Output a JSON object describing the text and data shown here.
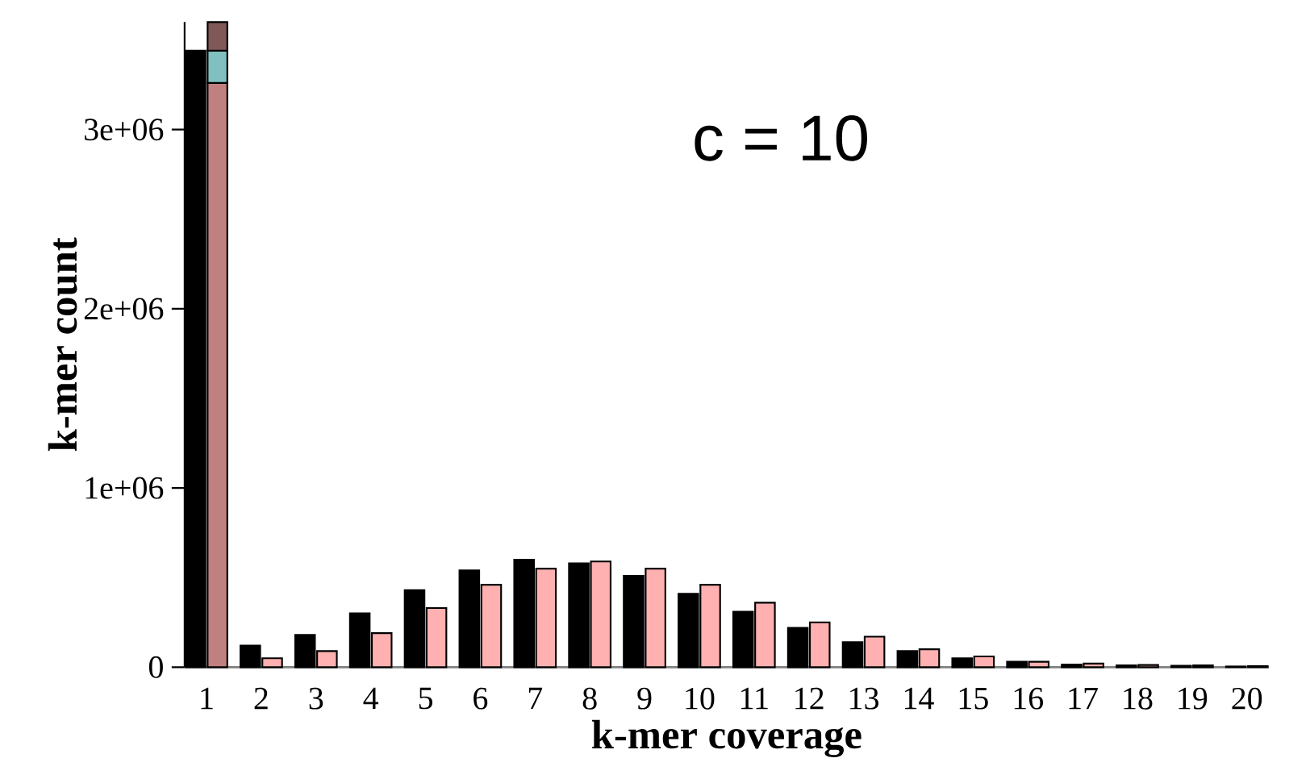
{
  "chart_data": {
    "type": "bar",
    "xlabel": "k-mer coverage",
    "ylabel": "k-mer count",
    "annotations": [
      "c = 10"
    ],
    "categories": [
      "1",
      "2",
      "3",
      "4",
      "5",
      "6",
      "7",
      "8",
      "9",
      "10",
      "11",
      "12",
      "13",
      "14",
      "15",
      "16",
      "17",
      "18",
      "19",
      "20"
    ],
    "series": [
      {
        "color": "#000000",
        "values": [
          3440000,
          120000,
          180000,
          300000,
          430000,
          540000,
          600000,
          580000,
          510000,
          410000,
          310000,
          220000,
          140000,
          90000,
          50000,
          30000,
          15000,
          10000,
          8000,
          4000
        ]
      },
      {
        "color": "#ffb0b0",
        "values": [
          null,
          50000,
          90000,
          190000,
          330000,
          460000,
          550000,
          590000,
          550000,
          460000,
          360000,
          250000,
          170000,
          100000,
          60000,
          30000,
          20000,
          12000,
          10000,
          6000
        ]
      },
      {
        "color": "#c08080",
        "base": [
          0,
          null,
          null,
          null,
          null,
          null,
          null,
          null,
          null,
          null,
          null,
          null,
          null,
          null,
          null,
          null,
          null,
          null,
          null,
          null
        ],
        "values": [
          3260000,
          null,
          null,
          null,
          null,
          null,
          null,
          null,
          null,
          null,
          null,
          null,
          null,
          null,
          null,
          null,
          null,
          null,
          null,
          null
        ]
      },
      {
        "color": "#80c0c0",
        "base": [
          3260000,
          null,
          null,
          null,
          null,
          null,
          null,
          null,
          null,
          null,
          null,
          null,
          null,
          null,
          null,
          null,
          null,
          null,
          null,
          null
        ],
        "values": [
          180000,
          null,
          null,
          null,
          null,
          null,
          null,
          null,
          null,
          null,
          null,
          null,
          null,
          null,
          null,
          null,
          null,
          null,
          null,
          null
        ]
      },
      {
        "color": "#805858",
        "base": [
          3440000,
          null,
          null,
          null,
          null,
          null,
          null,
          null,
          null,
          null,
          null,
          null,
          null,
          null,
          null,
          null,
          null,
          null,
          null,
          null
        ],
        "values": [
          160000,
          null,
          null,
          null,
          null,
          null,
          null,
          null,
          null,
          null,
          null,
          null,
          null,
          null,
          null,
          null,
          null,
          null,
          null,
          null
        ]
      }
    ],
    "ylim": [
      0,
      3600000
    ],
    "yticks": [
      0,
      {
        "value": 1000000,
        "label": "1e+06"
      },
      {
        "value": 2000000,
        "label": "2e+06"
      },
      {
        "value": 3000000,
        "label": "3e+06"
      }
    ]
  }
}
